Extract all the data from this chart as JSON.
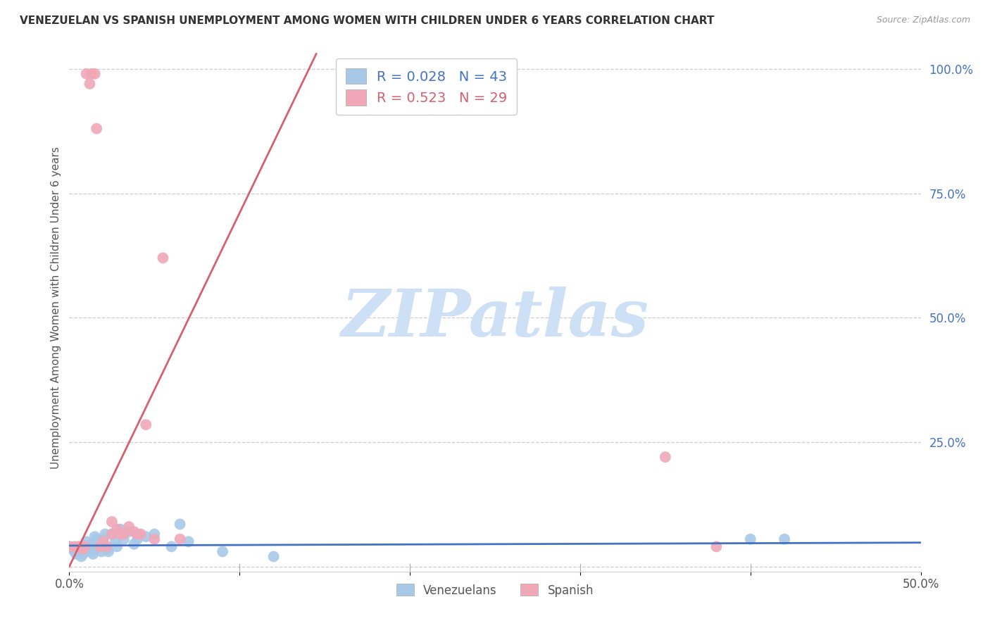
{
  "title": "VENEZUELAN VS SPANISH UNEMPLOYMENT AMONG WOMEN WITH CHILDREN UNDER 6 YEARS CORRELATION CHART",
  "source": "Source: ZipAtlas.com",
  "ylabel": "Unemployment Among Women with Children Under 6 years",
  "xlim": [
    0.0,
    0.5
  ],
  "ylim": [
    0.0,
    1.05
  ],
  "xticks": [
    0.0,
    0.1,
    0.2,
    0.3,
    0.4,
    0.5
  ],
  "xtick_labels": [
    "0.0%",
    "",
    "",
    "",
    "",
    "50.0%"
  ],
  "yticks_right": [
    0.0,
    0.25,
    0.5,
    0.75,
    1.0
  ],
  "ytick_labels_right": [
    "",
    "25.0%",
    "50.0%",
    "75.0%",
    "100.0%"
  ],
  "venezuelan_color": "#a8c8e8",
  "spanish_color": "#f0a8b8",
  "venezuelan_line_color": "#4472c4",
  "spanish_line_color": "#d46070",
  "R_ven": 0.028,
  "N_ven": 43,
  "R_spa": 0.523,
  "N_spa": 29,
  "watermark": "ZIPatlas",
  "watermark_color": "#cde0f5",
  "venezuelan_x": [
    0.0,
    0.002,
    0.003,
    0.004,
    0.005,
    0.006,
    0.007,
    0.007,
    0.008,
    0.009,
    0.01,
    0.01,
    0.011,
    0.012,
    0.013,
    0.013,
    0.014,
    0.015,
    0.016,
    0.017,
    0.018,
    0.019,
    0.02,
    0.021,
    0.022,
    0.023,
    0.025,
    0.027,
    0.028,
    0.03,
    0.032,
    0.035,
    0.038,
    0.04,
    0.045,
    0.05,
    0.06,
    0.065,
    0.07,
    0.09,
    0.12,
    0.4,
    0.42
  ],
  "venezuelan_y": [
    0.04,
    0.035,
    0.03,
    0.025,
    0.03,
    0.04,
    0.02,
    0.035,
    0.025,
    0.04,
    0.05,
    0.03,
    0.04,
    0.035,
    0.03,
    0.045,
    0.025,
    0.06,
    0.055,
    0.04,
    0.045,
    0.03,
    0.055,
    0.065,
    0.035,
    0.03,
    0.065,
    0.05,
    0.04,
    0.075,
    0.055,
    0.07,
    0.045,
    0.055,
    0.06,
    0.065,
    0.04,
    0.085,
    0.05,
    0.03,
    0.02,
    0.055,
    0.055
  ],
  "spanish_x": [
    0.0,
    0.003,
    0.005,
    0.007,
    0.008,
    0.009,
    0.01,
    0.012,
    0.013,
    0.015,
    0.016,
    0.018,
    0.02,
    0.022,
    0.025,
    0.025,
    0.028,
    0.03,
    0.032,
    0.035,
    0.038,
    0.04,
    0.042,
    0.045,
    0.05,
    0.055,
    0.065,
    0.35,
    0.38
  ],
  "spanish_y": [
    0.04,
    0.04,
    0.04,
    0.04,
    0.035,
    0.04,
    0.99,
    0.97,
    0.99,
    0.99,
    0.88,
    0.04,
    0.05,
    0.04,
    0.09,
    0.065,
    0.075,
    0.065,
    0.065,
    0.08,
    0.07,
    0.065,
    0.065,
    0.285,
    0.055,
    0.62,
    0.055,
    0.22,
    0.04
  ],
  "ven_regline_x": [
    0.0,
    0.5
  ],
  "ven_regline_y": [
    0.042,
    0.048
  ],
  "spa_regline_x": [
    0.0,
    0.145
  ],
  "spa_regline_y": [
    0.0,
    1.03
  ]
}
